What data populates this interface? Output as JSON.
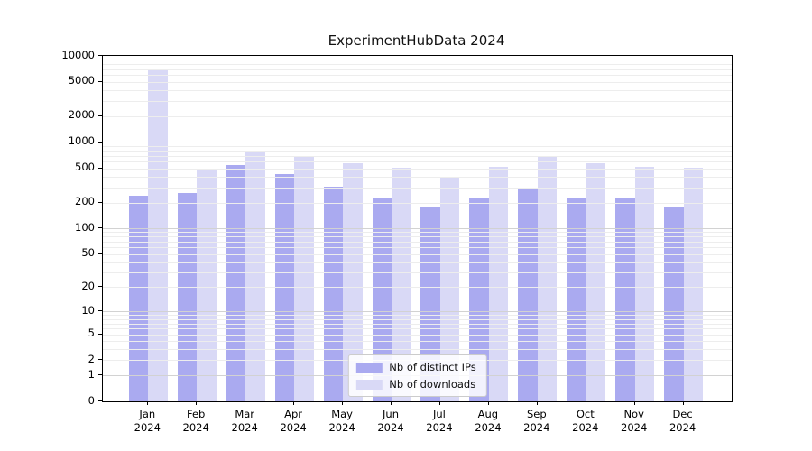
{
  "chart_data": {
    "type": "bar",
    "title": "ExperimentHubData 2024",
    "scale": "log10(1+x)",
    "ylim": [
      0,
      10000
    ],
    "y_tick_values": [
      0,
      1,
      2,
      5,
      10,
      20,
      50,
      100,
      200,
      500,
      1000,
      2000,
      5000,
      10000
    ],
    "y_tick_labels": [
      "0",
      "1",
      "2",
      "5",
      "10",
      "20",
      "50",
      "100",
      "200",
      "500",
      "1000",
      "2000",
      "5000",
      "10000"
    ],
    "categories": [
      "Jan",
      "Feb",
      "Mar",
      "Apr",
      "May",
      "Jun",
      "Jul",
      "Aug",
      "Sep",
      "Oct",
      "Nov",
      "Dec"
    ],
    "x_tick_year": "2024",
    "series": [
      {
        "name": "Nb of distinct IPs",
        "color": "#aaaaf0",
        "values": [
          239,
          260,
          545,
          430,
          305,
          222,
          178,
          230,
          300,
          221,
          221,
          180
        ]
      },
      {
        "name": "Nb of downloads",
        "color": "#d9d9f6",
        "values": [
          6800,
          500,
          780,
          690,
          572,
          505,
          388,
          514,
          690,
          566,
          523,
          502
        ]
      }
    ],
    "grid": "on",
    "legend_position": "lower center"
  },
  "colors": {
    "grid_minor": "#ededed",
    "grid_major": "#d2d2d2",
    "spine": "#000000",
    "title_text": "#111111"
  }
}
